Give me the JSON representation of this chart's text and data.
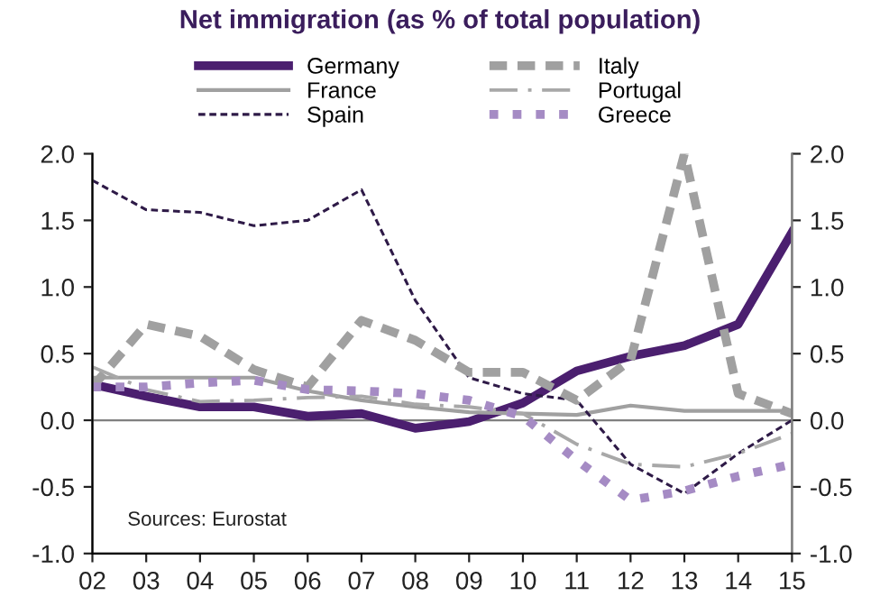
{
  "chart_data": {
    "type": "line",
    "title": "Net immigration (as % of total population)",
    "categories": [
      "02",
      "03",
      "04",
      "05",
      "06",
      "07",
      "08",
      "09",
      "10",
      "11",
      "12",
      "13",
      "14",
      "15"
    ],
    "series": [
      {
        "name": "Germany",
        "color": "#4b1f6f",
        "line_style": "solid",
        "values": [
          0.27,
          0.18,
          0.1,
          0.1,
          0.03,
          0.05,
          -0.06,
          -0.01,
          0.13,
          0.37,
          0.48,
          0.56,
          0.72,
          1.41
        ]
      },
      {
        "name": "France",
        "color": "#a0a0a0",
        "line_style": "solid",
        "values": [
          0.32,
          0.32,
          0.32,
          0.32,
          0.22,
          0.15,
          0.1,
          0.06,
          0.05,
          0.04,
          0.11,
          0.07,
          0.07,
          0.07
        ]
      },
      {
        "name": "Spain",
        "color": "#2e1a47",
        "line_style": "dashed",
        "values": [
          1.8,
          1.58,
          1.56,
          1.46,
          1.5,
          1.73,
          0.9,
          0.32,
          0.2,
          0.15,
          -0.33,
          -0.55,
          -0.25,
          0.0
        ]
      },
      {
        "name": "Italy",
        "color": "#a0a0a0",
        "line_style": "dashed",
        "values": [
          0.25,
          0.72,
          0.63,
          0.38,
          0.25,
          0.75,
          0.6,
          0.36,
          0.36,
          0.15,
          0.45,
          2.0,
          0.2,
          0.05
        ]
      },
      {
        "name": "Portugal",
        "color": "#a8a8a8",
        "line_style": "dashdot",
        "values": [
          0.4,
          0.23,
          0.14,
          0.15,
          0.17,
          0.18,
          0.12,
          0.1,
          0.05,
          -0.18,
          -0.33,
          -0.35,
          -0.25,
          -0.1
        ]
      },
      {
        "name": "Greece",
        "color": "#a58bc4",
        "line_style": "dotted",
        "values": [
          0.25,
          0.25,
          0.28,
          0.3,
          0.23,
          0.22,
          0.2,
          0.15,
          0.03,
          -0.3,
          -0.6,
          -0.53,
          -0.42,
          -0.33
        ]
      }
    ],
    "ylim": [
      -1.0,
      2.0
    ],
    "yticks": [
      {
        "value": -1.0,
        "label": "-1.0"
      },
      {
        "value": -0.5,
        "label": "-0.5"
      },
      {
        "value": 0.0,
        "label": "0.0"
      },
      {
        "value": 0.5,
        "label": "0.5"
      },
      {
        "value": 1.0,
        "label": "1.0"
      },
      {
        "value": 1.5,
        "label": "1.5"
      },
      {
        "value": 2.0,
        "label": "2.0"
      }
    ],
    "y2lim": [
      -1.0,
      2.0
    ],
    "y2ticks": [
      {
        "value": -1.0,
        "label": "-1.0"
      },
      {
        "value": -0.5,
        "label": "-0.5"
      },
      {
        "value": 0.0,
        "label": "0.0"
      },
      {
        "value": 0.5,
        "label": "0.5"
      },
      {
        "value": 1.0,
        "label": "1.0"
      },
      {
        "value": 1.5,
        "label": "1.5"
      },
      {
        "value": 2.0,
        "label": "2.0"
      }
    ],
    "ref_lines": [
      {
        "axis": "y",
        "value": 0,
        "color": "#808080"
      }
    ],
    "annotations": [
      "Sources: Eurostat"
    ],
    "legend": "top",
    "grid": false
  }
}
